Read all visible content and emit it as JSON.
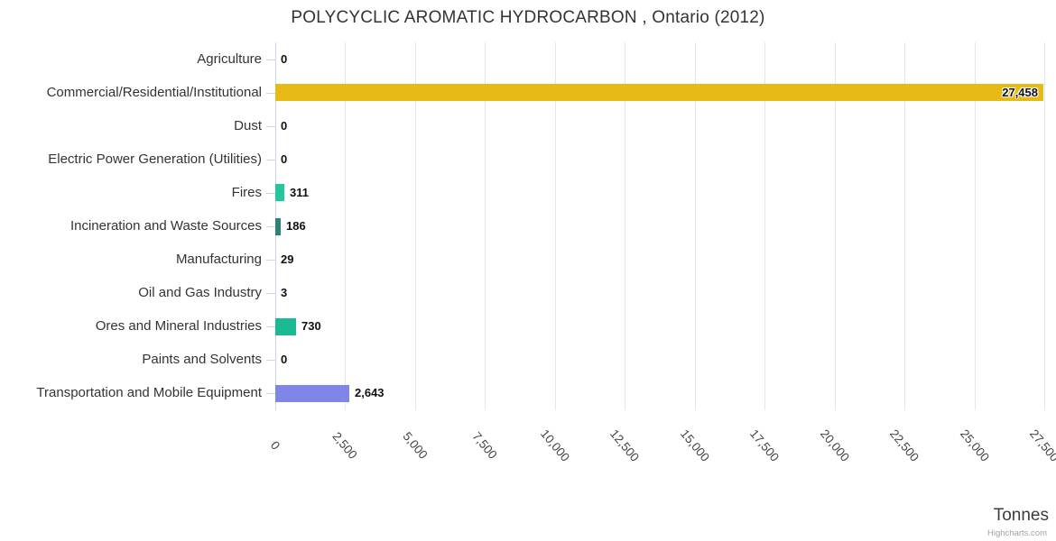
{
  "title": "POLYCYCLIC AROMATIC HYDROCARBON , Ontario (2012)",
  "credits_label": "Highcharts.com",
  "colors": {
    "grid": "#e6e6e6",
    "axis_line": "#ccd6eb",
    "category_label": "#333333",
    "value_label": "#111111",
    "title": "#333333",
    "credit": "#a3a3a3"
  },
  "chart_data": {
    "type": "bar",
    "orientation": "horizontal",
    "title": "POLYCYCLIC AROMATIC HYDROCARBON , Ontario (2012)",
    "xlabel": "Tonnes",
    "ylabel": "",
    "legend": "none",
    "grid": true,
    "xlim": [
      0,
      27500
    ],
    "x_tick_values": [
      0,
      2500,
      5000,
      7500,
      10000,
      12500,
      15000,
      17500,
      20000,
      22500,
      25000,
      27500
    ],
    "x_tick_labels": [
      "0",
      "2,500",
      "5,000",
      "7,500",
      "10,000",
      "12,500",
      "15,000",
      "17,500",
      "20,000",
      "22,500",
      "25,000",
      "27,500"
    ],
    "categories": [
      "Agriculture",
      "Commercial/Residential/Institutional",
      "Dust",
      "Electric Power Generation (Utilities)",
      "Fires",
      "Incineration and Waste Sources",
      "Manufacturing",
      "Oil and Gas Industry",
      "Ores and Mineral Industries",
      "Paints and Solvents",
      "Transportation and Mobile Equipment"
    ],
    "values": [
      0,
      27458,
      0,
      0,
      311,
      186,
      29,
      3,
      730,
      0,
      2643
    ],
    "value_labels": [
      "0",
      "27,458",
      "0",
      "0",
      "311",
      "186",
      "29",
      "3",
      "730",
      "0",
      "2,643"
    ],
    "bar_colors": [
      null,
      "#e7ba16",
      null,
      null,
      "#22c79c",
      "#2e827c",
      null,
      null,
      "#1bb994",
      null,
      "#8085e9"
    ]
  }
}
